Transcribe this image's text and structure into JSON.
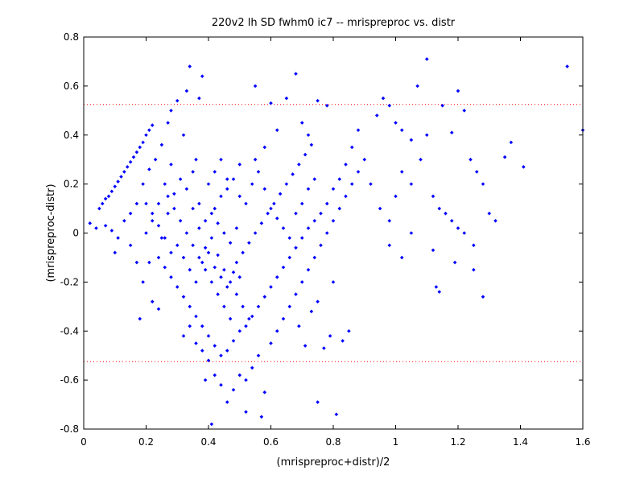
{
  "chart_data": {
    "type": "scatter",
    "title": "220v2 lh SD fwhm0 ic7 -- mrispreproc vs. distr",
    "xlabel": "(mrispreproc+distr)/2",
    "ylabel": "(mrispreproc-distr)",
    "xlim": [
      0,
      1.6
    ],
    "ylim": [
      -0.8,
      0.8
    ],
    "xticks": [
      "0",
      "0.2",
      "0.4",
      "0.6",
      "0.8",
      "1",
      "1.2",
      "1.4",
      "1.6"
    ],
    "yticks": [
      "0.8",
      "0.6",
      "0.4",
      "0.2",
      "0",
      "-0.2",
      "-0.4",
      "-0.6",
      "-0.8"
    ],
    "reference_lines_y": [
      0.525,
      -0.525
    ],
    "grid": false,
    "colors": {
      "points": "#0000ff",
      "reference": "#ff0000",
      "axes": "#000000",
      "background": "#ffffff"
    },
    "points": [
      [
        0.02,
        0.04
      ],
      [
        0.04,
        0.02
      ],
      [
        0.05,
        0.1
      ],
      [
        0.06,
        0.12
      ],
      [
        0.07,
        0.14
      ],
      [
        0.08,
        0.15
      ],
      [
        0.09,
        0.17
      ],
      [
        0.1,
        0.19
      ],
      [
        0.11,
        0.21
      ],
      [
        0.12,
        0.23
      ],
      [
        0.13,
        0.25
      ],
      [
        0.14,
        0.27
      ],
      [
        0.15,
        0.29
      ],
      [
        0.16,
        0.31
      ],
      [
        0.17,
        0.33
      ],
      [
        0.18,
        0.35
      ],
      [
        0.19,
        0.37
      ],
      [
        0.2,
        0.4
      ],
      [
        0.21,
        0.42
      ],
      [
        0.22,
        0.44
      ],
      [
        0.07,
        0.03
      ],
      [
        0.09,
        0.01
      ],
      [
        0.11,
        -0.02
      ],
      [
        0.1,
        -0.08
      ],
      [
        0.13,
        0.05
      ],
      [
        0.15,
        0.08
      ],
      [
        0.17,
        0.12
      ],
      [
        0.19,
        0.2
      ],
      [
        0.21,
        0.26
      ],
      [
        0.23,
        0.3
      ],
      [
        0.25,
        0.36
      ],
      [
        0.27,
        0.45
      ],
      [
        0.28,
        0.5
      ],
      [
        0.3,
        0.54
      ],
      [
        0.34,
        0.68
      ],
      [
        0.38,
        0.64
      ],
      [
        0.37,
        0.55
      ],
      [
        0.33,
        0.58
      ],
      [
        0.15,
        -0.05
      ],
      [
        0.17,
        -0.12
      ],
      [
        0.19,
        -0.2
      ],
      [
        0.18,
        -0.35
      ],
      [
        0.22,
        -0.28
      ],
      [
        0.24,
        -0.31
      ],
      [
        0.21,
        -0.12
      ],
      [
        0.25,
        -0.02
      ],
      [
        0.27,
        0.08
      ],
      [
        0.29,
        0.16
      ],
      [
        0.31,
        0.22
      ],
      [
        0.33,
        0.18
      ],
      [
        0.35,
        0.25
      ],
      [
        0.37,
        0.12
      ],
      [
        0.39,
        0.05
      ],
      [
        0.41,
        -0.02
      ],
      [
        0.43,
        -0.09
      ],
      [
        0.45,
        -0.15
      ],
      [
        0.47,
        -0.2
      ],
      [
        0.49,
        -0.25
      ],
      [
        0.51,
        -0.3
      ],
      [
        0.53,
        -0.35
      ],
      [
        0.32,
        -0.42
      ],
      [
        0.34,
        -0.38
      ],
      [
        0.36,
        -0.45
      ],
      [
        0.38,
        -0.48
      ],
      [
        0.4,
        -0.52
      ],
      [
        0.42,
        -0.58
      ],
      [
        0.44,
        -0.62
      ],
      [
        0.46,
        -0.69
      ],
      [
        0.48,
        -0.64
      ],
      [
        0.5,
        -0.58
      ],
      [
        0.52,
        -0.6
      ],
      [
        0.54,
        -0.55
      ],
      [
        0.56,
        -0.5
      ],
      [
        0.58,
        -0.65
      ],
      [
        0.39,
        -0.6
      ],
      [
        0.41,
        -0.78
      ],
      [
        0.52,
        -0.73
      ],
      [
        0.57,
        -0.75
      ],
      [
        0.81,
        -0.74
      ],
      [
        0.75,
        -0.69
      ],
      [
        0.6,
        -0.45
      ],
      [
        0.62,
        -0.4
      ],
      [
        0.64,
        -0.35
      ],
      [
        0.66,
        -0.3
      ],
      [
        0.68,
        -0.25
      ],
      [
        0.7,
        -0.2
      ],
      [
        0.72,
        -0.15
      ],
      [
        0.74,
        -0.1
      ],
      [
        0.76,
        -0.05
      ],
      [
        0.78,
        0.0
      ],
      [
        0.8,
        0.05
      ],
      [
        0.82,
        0.1
      ],
      [
        0.84,
        0.15
      ],
      [
        0.86,
        0.2
      ],
      [
        0.88,
        0.25
      ],
      [
        0.79,
        -0.42
      ],
      [
        0.77,
        -0.47
      ],
      [
        0.83,
        -0.44
      ],
      [
        0.85,
        -0.4
      ],
      [
        0.71,
        -0.46
      ],
      [
        0.69,
        -0.38
      ],
      [
        0.73,
        -0.32
      ],
      [
        0.75,
        -0.28
      ],
      [
        0.8,
        -0.2
      ],
      [
        0.55,
        0.6
      ],
      [
        0.6,
        0.53
      ],
      [
        0.65,
        0.55
      ],
      [
        0.68,
        0.65
      ],
      [
        0.75,
        0.54
      ],
      [
        0.78,
        0.52
      ],
      [
        0.7,
        0.45
      ],
      [
        0.72,
        0.4
      ],
      [
        0.62,
        0.42
      ],
      [
        0.58,
        0.35
      ],
      [
        0.55,
        0.3
      ],
      [
        0.5,
        0.28
      ],
      [
        0.48,
        0.22
      ],
      [
        0.46,
        0.18
      ],
      [
        0.44,
        0.15
      ],
      [
        0.42,
        0.1
      ],
      [
        0.4,
        0.2
      ],
      [
        0.36,
        0.3
      ],
      [
        0.32,
        0.4
      ],
      [
        0.28,
        0.28
      ],
      [
        0.26,
        0.2
      ],
      [
        0.24,
        0.12
      ],
      [
        0.22,
        0.05
      ],
      [
        0.2,
        0.0
      ],
      [
        0.92,
        0.2
      ],
      [
        0.95,
        0.1
      ],
      [
        0.98,
        0.05
      ],
      [
        1.0,
        0.15
      ],
      [
        1.02,
        0.25
      ],
      [
        1.05,
        0.2
      ],
      [
        1.08,
        0.3
      ],
      [
        1.1,
        0.4
      ],
      [
        0.96,
        0.55
      ],
      [
        0.98,
        0.52
      ],
      [
        1.0,
        0.45
      ],
      [
        1.02,
        0.42
      ],
      [
        1.05,
        0.38
      ],
      [
        1.07,
        0.6
      ],
      [
        1.1,
        0.71
      ],
      [
        1.15,
        0.52
      ],
      [
        1.18,
        0.41
      ],
      [
        1.2,
        0.58
      ],
      [
        1.22,
        0.5
      ],
      [
        1.24,
        0.3
      ],
      [
        1.26,
        0.25
      ],
      [
        1.28,
        0.2
      ],
      [
        1.12,
        0.15
      ],
      [
        1.14,
        0.1
      ],
      [
        1.16,
        0.08
      ],
      [
        1.18,
        0.05
      ],
      [
        1.2,
        0.02
      ],
      [
        1.22,
        0.0
      ],
      [
        1.25,
        -0.05
      ],
      [
        1.05,
        0.0
      ],
      [
        1.02,
        -0.1
      ],
      [
        0.98,
        -0.05
      ],
      [
        1.12,
        -0.07
      ],
      [
        1.19,
        -0.12
      ],
      [
        1.13,
        -0.22
      ],
      [
        1.14,
        -0.24
      ],
      [
        1.28,
        -0.26
      ],
      [
        1.25,
        -0.15
      ],
      [
        1.3,
        0.08
      ],
      [
        1.32,
        0.05
      ],
      [
        1.35,
        0.31
      ],
      [
        1.37,
        0.37
      ],
      [
        1.41,
        0.27
      ],
      [
        1.55,
        0.68
      ],
      [
        1.6,
        0.42
      ],
      [
        0.9,
        0.3
      ],
      [
        0.88,
        0.42
      ],
      [
        0.94,
        0.48
      ],
      [
        0.86,
        0.35
      ],
      [
        0.84,
        0.28
      ],
      [
        0.82,
        0.22
      ],
      [
        0.8,
        0.18
      ],
      [
        0.78,
        0.12
      ],
      [
        0.76,
        0.08
      ],
      [
        0.74,
        0.05
      ],
      [
        0.72,
        0.02
      ],
      [
        0.7,
        -0.02
      ],
      [
        0.68,
        -0.06
      ],
      [
        0.66,
        -0.1
      ],
      [
        0.64,
        -0.14
      ],
      [
        0.62,
        -0.18
      ],
      [
        0.6,
        -0.22
      ],
      [
        0.58,
        -0.26
      ],
      [
        0.56,
        -0.3
      ],
      [
        0.54,
        -0.34
      ],
      [
        0.52,
        -0.38
      ],
      [
        0.5,
        -0.4
      ],
      [
        0.48,
        -0.44
      ],
      [
        0.46,
        -0.48
      ],
      [
        0.44,
        -0.5
      ],
      [
        0.42,
        -0.46
      ],
      [
        0.4,
        -0.42
      ],
      [
        0.38,
        -0.38
      ],
      [
        0.36,
        -0.34
      ],
      [
        0.34,
        -0.3
      ],
      [
        0.32,
        -0.26
      ],
      [
        0.3,
        -0.22
      ],
      [
        0.28,
        -0.18
      ],
      [
        0.26,
        -0.14
      ],
      [
        0.24,
        -0.1
      ],
      [
        0.27,
        0.15
      ],
      [
        0.29,
        0.1
      ],
      [
        0.31,
        0.05
      ],
      [
        0.33,
        0.0
      ],
      [
        0.35,
        -0.05
      ],
      [
        0.37,
        -0.1
      ],
      [
        0.39,
        -0.15
      ],
      [
        0.41,
        -0.2
      ],
      [
        0.43,
        -0.25
      ],
      [
        0.45,
        -0.3
      ],
      [
        0.47,
        -0.35
      ],
      [
        0.49,
        -0.12
      ],
      [
        0.51,
        -0.08
      ],
      [
        0.53,
        -0.04
      ],
      [
        0.55,
        0.0
      ],
      [
        0.57,
        0.04
      ],
      [
        0.59,
        0.08
      ],
      [
        0.61,
        0.12
      ],
      [
        0.63,
        0.16
      ],
      [
        0.65,
        0.2
      ],
      [
        0.67,
        0.24
      ],
      [
        0.69,
        0.28
      ],
      [
        0.71,
        0.32
      ],
      [
        0.73,
        0.36
      ],
      [
        0.35,
        0.1
      ],
      [
        0.37,
        0.02
      ],
      [
        0.39,
        -0.06
      ],
      [
        0.41,
        0.08
      ],
      [
        0.43,
        0.04
      ],
      [
        0.45,
        0.0
      ],
      [
        0.47,
        -0.04
      ],
      [
        0.49,
        0.02
      ],
      [
        0.36,
        -0.2
      ],
      [
        0.38,
        -0.12
      ],
      [
        0.4,
        -0.08
      ],
      [
        0.42,
        -0.14
      ],
      [
        0.44,
        -0.18
      ],
      [
        0.46,
        -0.22
      ],
      [
        0.48,
        -0.16
      ],
      [
        0.5,
        -0.18
      ],
      [
        0.3,
        -0.05
      ],
      [
        0.32,
        -0.1
      ],
      [
        0.34,
        -0.15
      ],
      [
        0.28,
        -0.08
      ],
      [
        0.26,
        -0.02
      ],
      [
        0.24,
        0.03
      ],
      [
        0.22,
        0.08
      ],
      [
        0.2,
        0.12
      ],
      [
        0.42,
        0.25
      ],
      [
        0.44,
        0.3
      ],
      [
        0.46,
        0.22
      ],
      [
        0.5,
        0.15
      ],
      [
        0.52,
        0.12
      ],
      [
        0.54,
        0.2
      ],
      [
        0.56,
        0.25
      ],
      [
        0.58,
        0.18
      ],
      [
        0.6,
        0.1
      ],
      [
        0.62,
        0.06
      ],
      [
        0.64,
        0.02
      ],
      [
        0.66,
        -0.02
      ],
      [
        0.68,
        0.08
      ],
      [
        0.7,
        0.12
      ],
      [
        0.72,
        0.18
      ],
      [
        0.74,
        0.22
      ]
    ]
  }
}
